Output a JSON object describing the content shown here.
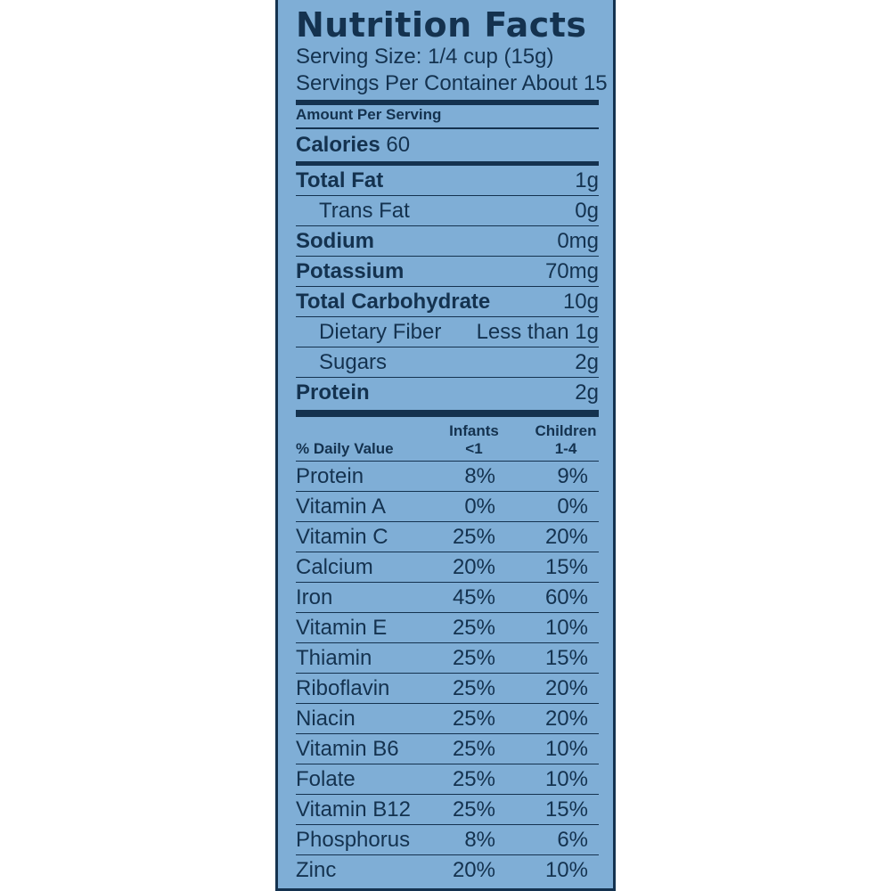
{
  "label": {
    "title": "Nutrition Facts",
    "serving_size": "Serving Size: 1/4 cup (15g)",
    "servings_per_container": "Servings Per Container About 15",
    "amount_per_serving": "Amount Per Serving",
    "calories_label": "Calories",
    "calories_value": "60",
    "nutrients": [
      {
        "name": "Total Fat",
        "value": "1g"
      },
      {
        "name": "Trans Fat",
        "value": "0g"
      },
      {
        "name": "Sodium",
        "value": "0mg"
      },
      {
        "name": "Potassium",
        "value": "70mg"
      },
      {
        "name": "Total Carbohydrate",
        "value": "10g"
      },
      {
        "name": "Dietary Fiber",
        "value": "Less than 1g"
      },
      {
        "name": "Sugars",
        "value": "2g"
      },
      {
        "name": "Protein",
        "value": "2g"
      }
    ],
    "daily_value": {
      "heading": "% Daily Value",
      "col1_line1": "Infants",
      "col1_line2": "<1",
      "col2_line1": "Children",
      "col2_line2": "1-4",
      "rows": [
        {
          "name": "Protein",
          "infants": "8%",
          "children": "9%"
        },
        {
          "name": "Vitamin A",
          "infants": "0%",
          "children": "0%"
        },
        {
          "name": "Vitamin C",
          "infants": "25%",
          "children": "20%"
        },
        {
          "name": "Calcium",
          "infants": "20%",
          "children": "15%"
        },
        {
          "name": "Iron",
          "infants": "45%",
          "children": "60%"
        },
        {
          "name": "Vitamin E",
          "infants": "25%",
          "children": "10%"
        },
        {
          "name": "Thiamin",
          "infants": "25%",
          "children": "15%"
        },
        {
          "name": "Riboflavin",
          "infants": "25%",
          "children": "20%"
        },
        {
          "name": "Niacin",
          "infants": "25%",
          "children": "20%"
        },
        {
          "name": "Vitamin B6",
          "infants": "25%",
          "children": "10%"
        },
        {
          "name": "Folate",
          "infants": "25%",
          "children": "10%"
        },
        {
          "name": "Vitamin B12",
          "infants": "25%",
          "children": "15%"
        },
        {
          "name": "Phosphorus",
          "infants": "8%",
          "children": "6%"
        },
        {
          "name": "Zinc",
          "infants": "20%",
          "children": "10%"
        }
      ]
    }
  },
  "colors": {
    "panel": "#7faed6",
    "ink": "#14324f"
  }
}
